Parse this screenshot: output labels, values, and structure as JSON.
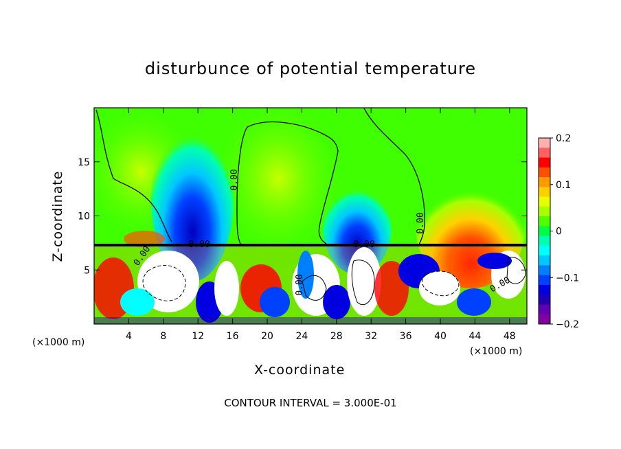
{
  "chart_data": {
    "type": "heatmap",
    "title": "disturbunce of potential temperature",
    "xlabel": "X-coordinate",
    "ylabel": "Z-coordinate",
    "x_unit": "(×1000 m)",
    "footer": "CONTOUR INTERVAL = 3.000E-01",
    "xlim": [
      0,
      50
    ],
    "ylim": [
      0,
      20
    ],
    "x_ticks": [
      4,
      8,
      12,
      16,
      20,
      24,
      28,
      32,
      36,
      40,
      44,
      48
    ],
    "y_ticks": [
      5,
      10,
      15
    ],
    "colorbar": {
      "range": [
        -0.2,
        0.2
      ],
      "ticks": [
        "0.2",
        "0.1",
        "0",
        "−0.1",
        "−0.2"
      ],
      "colors": [
        "#ffb0b0",
        "#ff6060",
        "#ff0000",
        "#ff5000",
        "#ff9a00",
        "#ffd000",
        "#e8ff00",
        "#a8ff00",
        "#50ff00",
        "#00ff40",
        "#00ffb0",
        "#00ffff",
        "#00c8ff",
        "#0080ff",
        "#0040ff",
        "#0000e0",
        "#2000b0",
        "#6000b0",
        "#8000a0"
      ]
    },
    "contour_labels": [
      "0.00",
      "0.00",
      "0.00",
      "0.00",
      "0.00",
      "0.00",
      "0.00"
    ]
  },
  "colors": {
    "background": "#ffffff",
    "field_base": "#40ff00",
    "warm_anomaly": "#ff3000",
    "cold_anomaly": "#0020ff"
  }
}
